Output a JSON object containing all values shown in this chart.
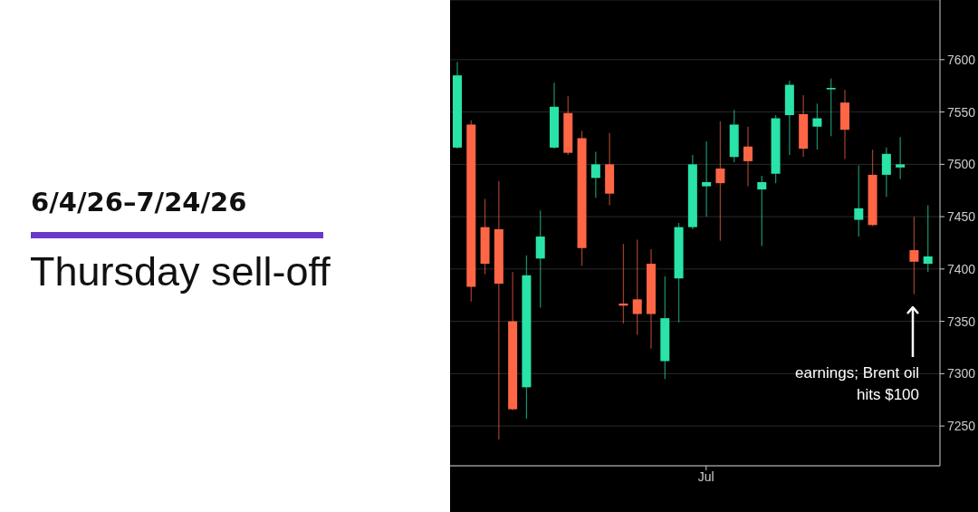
{
  "chart_data": {
    "type": "candlestick",
    "title": "6/4/26–7/24/26",
    "subtitle": "Thursday sell-off",
    "annotations": [
      "earnings; Brent oil hits $100"
    ],
    "categories": [
      null,
      null,
      null,
      null,
      null,
      null,
      null,
      null,
      null,
      null,
      null,
      null,
      null,
      null,
      null,
      null,
      null,
      null,
      "Jul",
      null,
      null,
      null,
      null,
      null,
      null,
      null,
      null,
      null,
      null,
      null,
      null,
      null,
      null,
      null,
      null
    ],
    "ohlc": [
      [
        7516,
        7598,
        7515,
        7585
      ],
      [
        7538,
        7542,
        7369,
        7383
      ],
      [
        7440,
        7467,
        7395,
        7405
      ],
      [
        7438,
        7484,
        7237,
        7386
      ],
      [
        7350,
        7397,
        7265,
        7266
      ],
      [
        7287,
        7413,
        7257,
        7394
      ],
      [
        7410,
        7456,
        7363,
        7431
      ],
      [
        7516,
        7578,
        7515,
        7555
      ],
      [
        7549,
        7565,
        7509,
        7511
      ],
      [
        7525,
        7532,
        7403,
        7420
      ],
      [
        7487,
        7512,
        7468,
        7500
      ],
      [
        7500,
        7530,
        7461,
        7472
      ],
      [
        7367,
        7424,
        7348,
        7365
      ],
      [
        7371,
        7428,
        7337,
        7357
      ],
      [
        7405,
        7419,
        7324,
        7357
      ],
      [
        7312,
        7393,
        7295,
        7353
      ],
      [
        7391,
        7444,
        7349,
        7440
      ],
      [
        7440,
        7509,
        7438,
        7500
      ],
      [
        7479,
        7522,
        7450,
        7483
      ],
      [
        7496,
        7541,
        7427,
        7482
      ],
      [
        7507,
        7552,
        7502,
        7538
      ],
      [
        7517,
        7536,
        7479,
        7503
      ],
      [
        7476,
        7489,
        7422,
        7483
      ],
      [
        7491,
        7547,
        7482,
        7544
      ],
      [
        7547,
        7580,
        7509,
        7576
      ],
      [
        7548,
        7566,
        7507,
        7515
      ],
      [
        7536,
        7558,
        7514,
        7544
      ],
      [
        7572,
        7582,
        7527,
        7573
      ],
      [
        7559,
        7571,
        7505,
        7533
      ],
      [
        7447,
        7499,
        7431,
        7458
      ],
      [
        7490,
        7514,
        7441,
        7442
      ],
      [
        7490,
        7516,
        7469,
        7510
      ],
      [
        7497,
        7526,
        7486,
        7500
      ],
      [
        7418,
        7450,
        7376,
        7407
      ],
      [
        7405,
        7461,
        7397,
        7412
      ]
    ],
    "colors": [
      "#29e3a9",
      "#ff6645",
      "#ff6645",
      "#ff6645",
      "#ff6645",
      "#29e3a9",
      "#29e3a9",
      "#29e3a9",
      "#ff6645",
      "#ff6645",
      "#29e3a9",
      "#ff6645",
      "#ff6645",
      "#ff6645",
      "#ff6645",
      "#29e3a9",
      "#29e3a9",
      "#29e3a9",
      "#29e3a9",
      "#ff6645",
      "#29e3a9",
      "#ff6645",
      "#29e3a9",
      "#29e3a9",
      "#29e3a9",
      "#ff6645",
      "#29e3a9",
      "#29e3a9",
      "#ff6645",
      "#29e3a9",
      "#ff6645",
      "#29e3a9",
      "#29e3a9",
      "#ff6645",
      "#29e3a9"
    ],
    "ylim": [
      7212,
      7657
    ],
    "yticks": [
      7250,
      7300,
      7350,
      7400,
      7450,
      7500,
      7550,
      7600
    ],
    "grid": "y"
  }
}
